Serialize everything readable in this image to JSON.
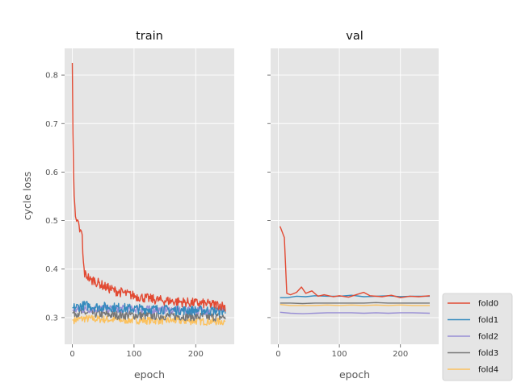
{
  "chart_data": {
    "type": "line",
    "ylabel": "cycle loss",
    "ylim": [
      0.245,
      0.855
    ],
    "yticks": [
      "0.3",
      "0.4",
      "0.5",
      "0.6",
      "0.7",
      "0.8"
    ],
    "xlim": [
      -12.5,
      262.5
    ],
    "xticks": [
      "0",
      "100",
      "200"
    ],
    "legend_position": "lower-right, outside plot area",
    "grid": true,
    "series_colors": {
      "fold0": "#E24A33",
      "fold1": "#348ABD",
      "fold2": "#988ED5",
      "fold3": "#777777",
      "fold4": "#FBC15E"
    },
    "panels": [
      {
        "title": "train",
        "xlabel": "epoch",
        "series": [
          {
            "name": "fold0",
            "color": "#E24A33",
            "points": [
              [
                0,
                0.825
              ],
              [
                1,
                0.68
              ],
              [
                2,
                0.6
              ],
              [
                3,
                0.56
              ],
              [
                4,
                0.54
              ],
              [
                5,
                0.51
              ],
              [
                6,
                0.495
              ],
              [
                8,
                0.495
              ],
              [
                10,
                0.49
              ],
              [
                12,
                0.48
              ],
              [
                14,
                0.475
              ],
              [
                16,
                0.47
              ],
              [
                17,
                0.43
              ],
              [
                18,
                0.41
              ],
              [
                20,
                0.39
              ],
              [
                25,
                0.385
              ],
              [
                30,
                0.375
              ],
              [
                35,
                0.378
              ],
              [
                40,
                0.372
              ],
              [
                45,
                0.37
              ],
              [
                50,
                0.365
              ],
              [
                60,
                0.36
              ],
              [
                70,
                0.355
              ],
              [
                80,
                0.352
              ],
              [
                90,
                0.348
              ],
              [
                100,
                0.345
              ],
              [
                120,
                0.34
              ],
              [
                140,
                0.336
              ],
              [
                160,
                0.334
              ],
              [
                180,
                0.332
              ],
              [
                200,
                0.33
              ],
              [
                220,
                0.328
              ],
              [
                240,
                0.326
              ],
              [
                248,
                0.322
              ]
            ]
          },
          {
            "name": "fold1",
            "color": "#348ABD",
            "points": [
              [
                0,
                0.32
              ],
              [
                20,
                0.325
              ],
              [
                40,
                0.322
              ],
              [
                60,
                0.322
              ],
              [
                80,
                0.32
              ],
              [
                100,
                0.318
              ],
              [
                120,
                0.318
              ],
              [
                140,
                0.317
              ],
              [
                160,
                0.316
              ],
              [
                180,
                0.315
              ],
              [
                200,
                0.315
              ],
              [
                220,
                0.315
              ],
              [
                248,
                0.313
              ]
            ]
          },
          {
            "name": "fold2",
            "color": "#988ED5",
            "points": [
              [
                0,
                0.315
              ],
              [
                20,
                0.317
              ],
              [
                40,
                0.318
              ],
              [
                60,
                0.318
              ],
              [
                80,
                0.318
              ],
              [
                100,
                0.317
              ],
              [
                120,
                0.317
              ],
              [
                140,
                0.316
              ],
              [
                160,
                0.316
              ],
              [
                180,
                0.315
              ],
              [
                200,
                0.315
              ],
              [
                220,
                0.314
              ],
              [
                248,
                0.313
              ]
            ]
          },
          {
            "name": "fold3",
            "color": "#777777",
            "points": [
              [
                0,
                0.31
              ],
              [
                20,
                0.31
              ],
              [
                40,
                0.308
              ],
              [
                60,
                0.306
              ],
              [
                80,
                0.305
              ],
              [
                100,
                0.305
              ],
              [
                120,
                0.304
              ],
              [
                140,
                0.304
              ],
              [
                160,
                0.303
              ],
              [
                180,
                0.303
              ],
              [
                200,
                0.302
              ],
              [
                220,
                0.302
              ],
              [
                248,
                0.301
              ]
            ]
          },
          {
            "name": "fold4",
            "color": "#FBC15E",
            "points": [
              [
                0,
                0.295
              ],
              [
                20,
                0.298
              ],
              [
                40,
                0.297
              ],
              [
                60,
                0.296
              ],
              [
                80,
                0.295
              ],
              [
                100,
                0.295
              ],
              [
                120,
                0.294
              ],
              [
                140,
                0.294
              ],
              [
                160,
                0.294
              ],
              [
                180,
                0.293
              ],
              [
                200,
                0.293
              ],
              [
                220,
                0.292
              ],
              [
                248,
                0.292
              ]
            ]
          }
        ]
      },
      {
        "title": "val",
        "xlabel": "epoch",
        "series": [
          {
            "name": "fold0",
            "color": "#E24A33",
            "points": [
              [
                3,
                0.488
              ],
              [
                10,
                0.465
              ],
              [
                14,
                0.35
              ],
              [
                20,
                0.347
              ],
              [
                30,
                0.352
              ],
              [
                38,
                0.363
              ],
              [
                45,
                0.35
              ],
              [
                55,
                0.355
              ],
              [
                65,
                0.344
              ],
              [
                75,
                0.347
              ],
              [
                90,
                0.343
              ],
              [
                100,
                0.345
              ],
              [
                115,
                0.342
              ],
              [
                140,
                0.352
              ],
              [
                150,
                0.345
              ],
              [
                170,
                0.343
              ],
              [
                185,
                0.346
              ],
              [
                200,
                0.341
              ],
              [
                215,
                0.344
              ],
              [
                230,
                0.343
              ],
              [
                248,
                0.345
              ]
            ]
          },
          {
            "name": "fold1",
            "color": "#348ABD",
            "points": [
              [
                3,
                0.341
              ],
              [
                15,
                0.341
              ],
              [
                30,
                0.344
              ],
              [
                45,
                0.343
              ],
              [
                60,
                0.345
              ],
              [
                80,
                0.344
              ],
              [
                100,
                0.344
              ],
              [
                120,
                0.346
              ],
              [
                140,
                0.343
              ],
              [
                160,
                0.344
              ],
              [
                180,
                0.345
              ],
              [
                200,
                0.343
              ],
              [
                220,
                0.344
              ],
              [
                248,
                0.344
              ]
            ]
          },
          {
            "name": "fold2",
            "color": "#988ED5",
            "points": [
              [
                3,
                0.311
              ],
              [
                20,
                0.309
              ],
              [
                40,
                0.308
              ],
              [
                60,
                0.309
              ],
              [
                80,
                0.31
              ],
              [
                100,
                0.31
              ],
              [
                120,
                0.31
              ],
              [
                140,
                0.309
              ],
              [
                160,
                0.31
              ],
              [
                180,
                0.309
              ],
              [
                200,
                0.31
              ],
              [
                220,
                0.31
              ],
              [
                248,
                0.309
              ]
            ]
          },
          {
            "name": "fold3",
            "color": "#777777",
            "points": [
              [
                3,
                0.33
              ],
              [
                20,
                0.33
              ],
              [
                40,
                0.329
              ],
              [
                60,
                0.33
              ],
              [
                80,
                0.33
              ],
              [
                100,
                0.33
              ],
              [
                120,
                0.33
              ],
              [
                140,
                0.33
              ],
              [
                160,
                0.331
              ],
              [
                180,
                0.33
              ],
              [
                200,
                0.33
              ],
              [
                220,
                0.33
              ],
              [
                248,
                0.33
              ]
            ]
          },
          {
            "name": "fold4",
            "color": "#FBC15E",
            "points": [
              [
                3,
                0.327
              ],
              [
                20,
                0.325
              ],
              [
                40,
                0.325
              ],
              [
                60,
                0.325
              ],
              [
                80,
                0.326
              ],
              [
                100,
                0.325
              ],
              [
                120,
                0.326
              ],
              [
                140,
                0.325
              ],
              [
                160,
                0.326
              ],
              [
                180,
                0.325
              ],
              [
                200,
                0.326
              ],
              [
                220,
                0.325
              ],
              [
                248,
                0.325
              ]
            ]
          }
        ]
      }
    ],
    "train_noise_amplitude": {
      "fold0": 0.01,
      "fold1": 0.01,
      "fold2": 0.008,
      "fold3": 0.009,
      "fold4": 0.008
    }
  }
}
